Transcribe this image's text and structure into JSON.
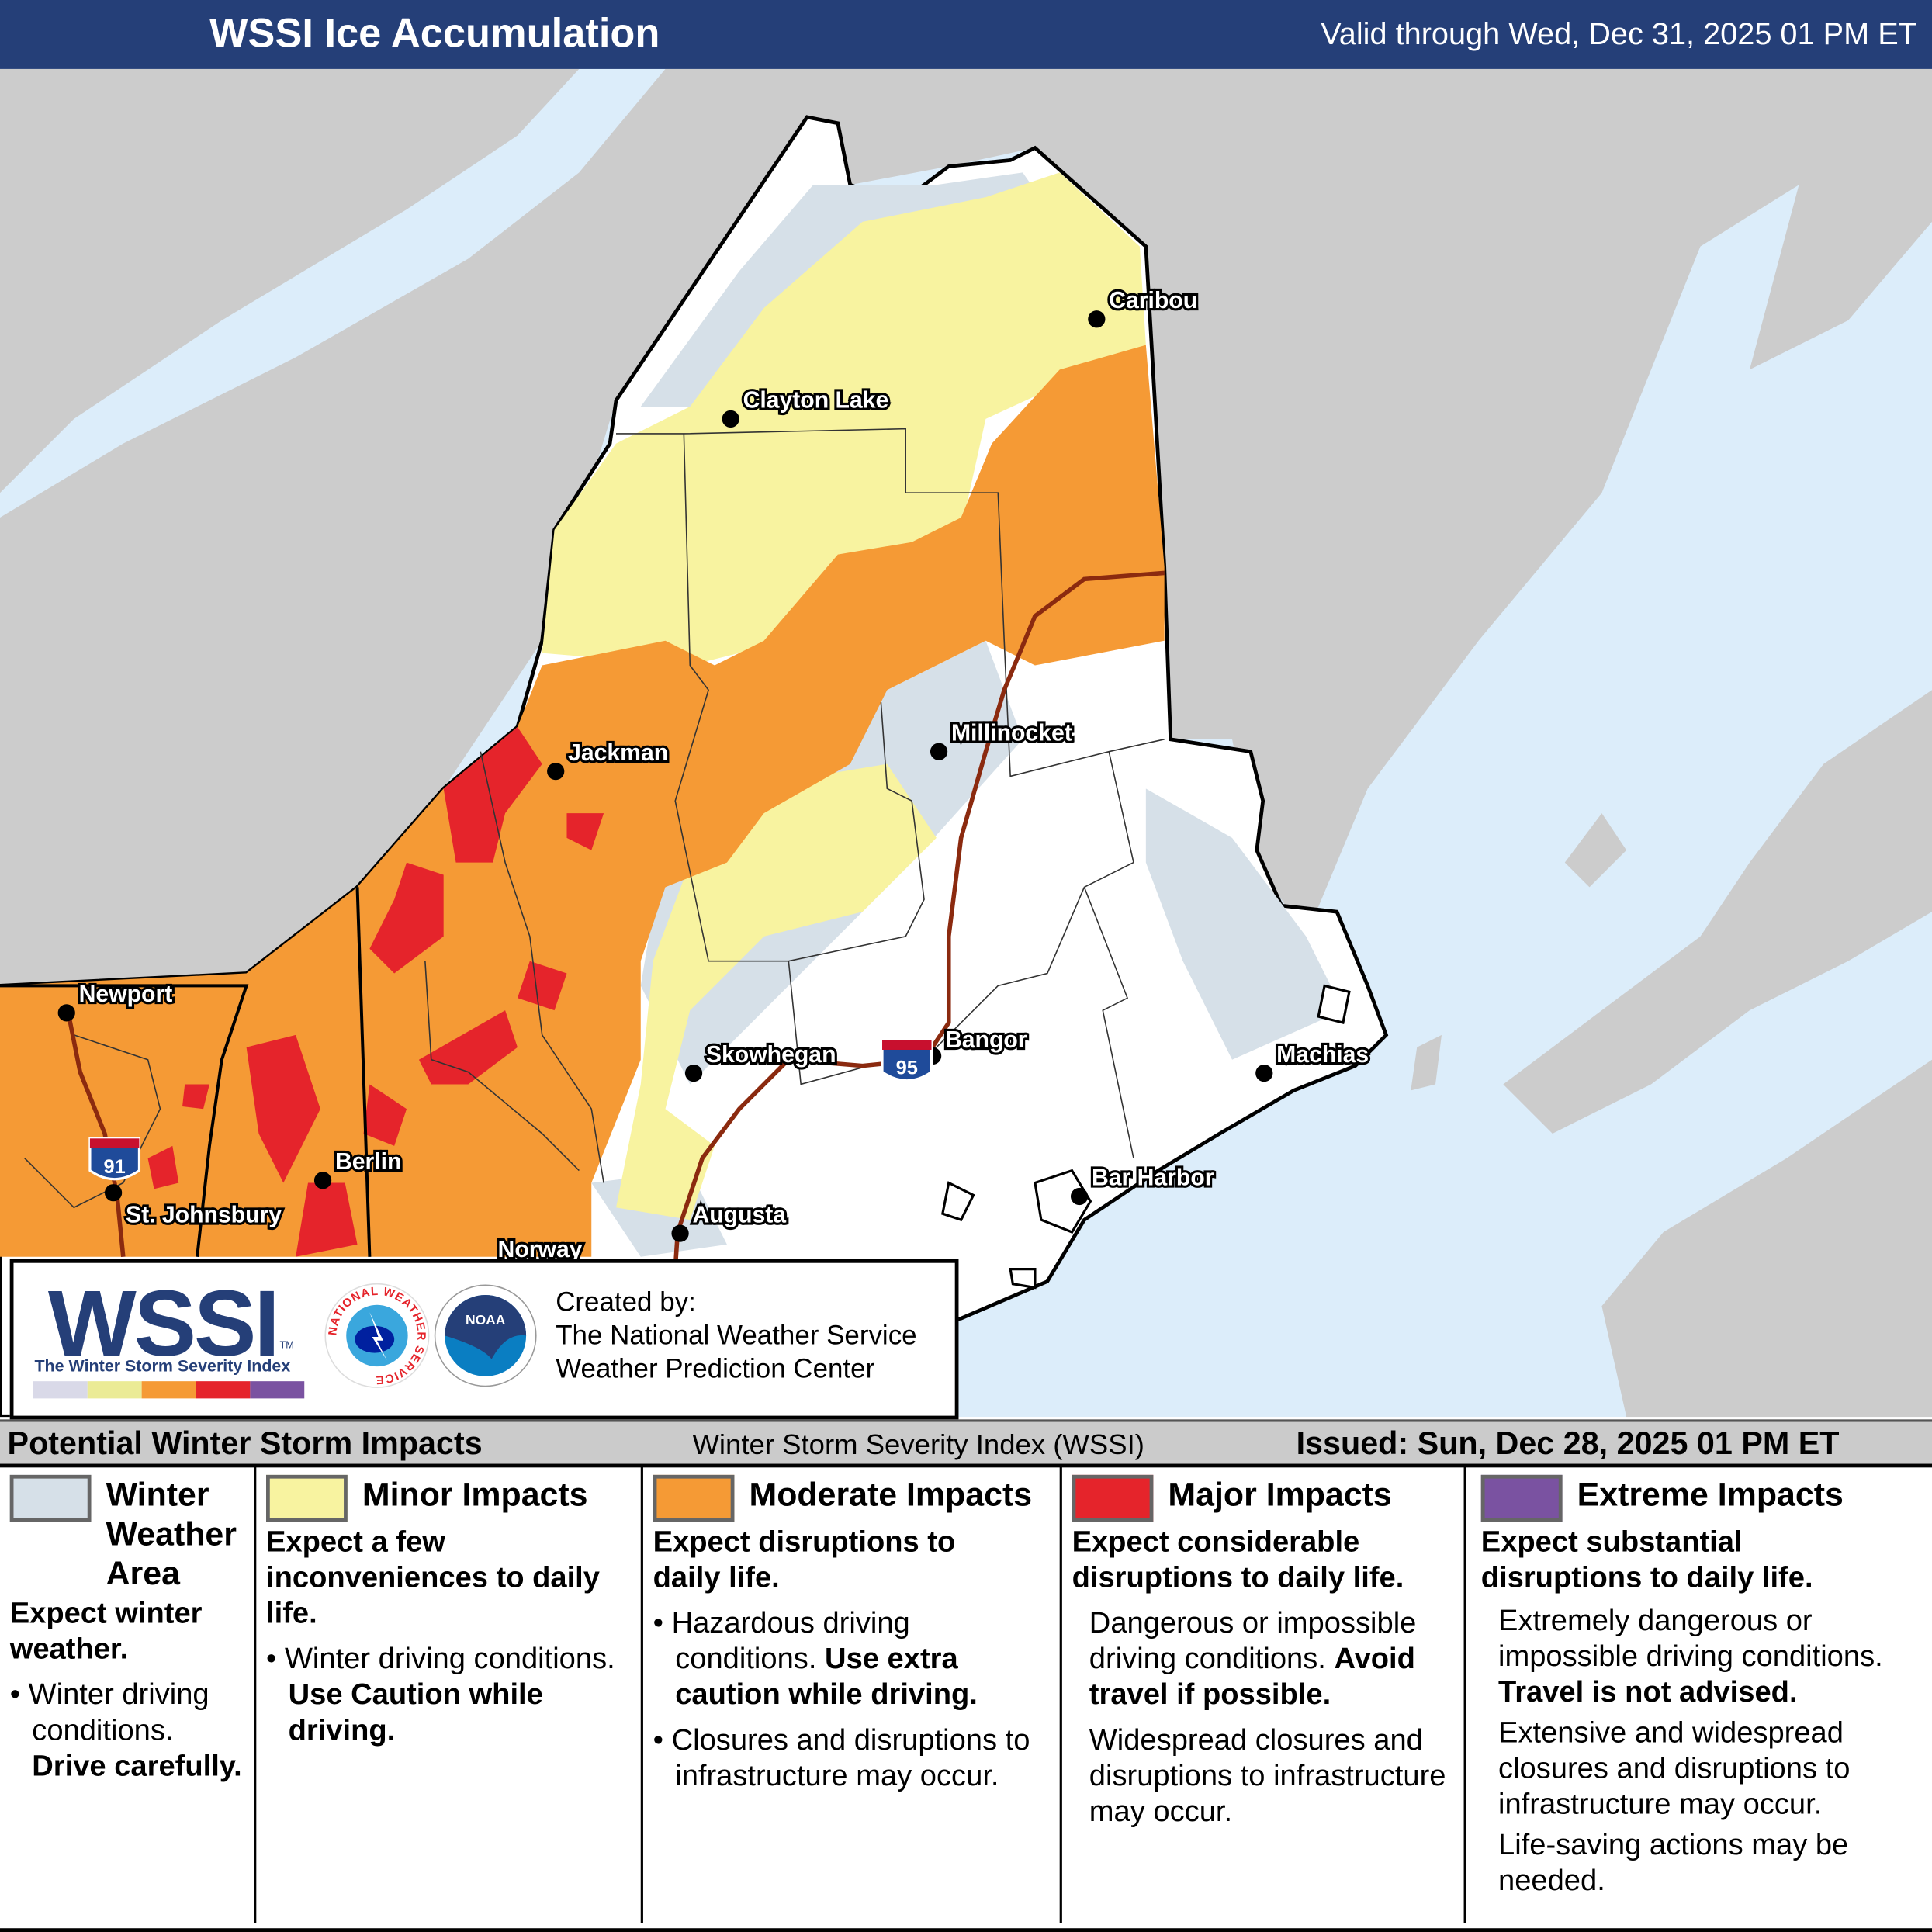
{
  "header": {
    "title": "WSSI Ice Accumulation",
    "valid": "Valid through Wed, Dec 31, 2025 01 PM ET"
  },
  "colors": {
    "header": "#253f78",
    "water": "#dcedfa",
    "land": "#cccccc",
    "none": "#ffffff",
    "winter_weather": "#d6e0e8",
    "minor": "#f8f3a0",
    "moderate": "#f59a35",
    "major": "#e5242b",
    "extreme": "#7a52a1",
    "highway": "#8b2a0f"
  },
  "map": {
    "cities": [
      "Caribou",
      "Clayton Lake",
      "Millinocket",
      "Jackman",
      "Newport",
      "Skowhegan",
      "Bangor",
      "Machias",
      "Berlin",
      "St. Johnsbury",
      "Bar Harbor",
      "Augusta",
      "Norway"
    ],
    "shields": [
      "95",
      "91"
    ]
  },
  "logo": {
    "wssi": "WSSI",
    "tm": "TM",
    "subtitle": "The Winter Storm Severity Index",
    "nws_text": "NATIONAL WEATHER SERVICE",
    "noaa_text": "NOAA",
    "created_by": "Created by:",
    "org1": "The National Weather Service",
    "org2": "Weather Prediction Center"
  },
  "strip": {
    "left": "Potential Winter Storm Impacts",
    "middle": "Winter Storm Severity Index (WSSI)",
    "issued": "Issued: Sun, Dec 28, 2025 01 PM ET"
  },
  "legend": [
    {
      "category": "Winter Weather Area",
      "headline": "Expect winter weather.",
      "bullets": [
        "Winter driving conditions."
      ],
      "bold": "Drive carefully."
    },
    {
      "category": "Minor Impacts",
      "headline": "Expect a few inconveniences to daily life.",
      "bullets": [
        "Winter driving conditions."
      ],
      "bold": "Use Caution while driving."
    },
    {
      "category": "Moderate Impacts",
      "headline": "Expect disruptions to daily life.",
      "bullets": [
        "Hazardous driving conditions.",
        "Closures and disruptions to infrastructure may occur."
      ],
      "bold": "Use extra caution while driving."
    },
    {
      "category": "Major Impacts",
      "headline": "Expect considerable disruptions to daily life.",
      "lines": [
        "Dangerous or impossible driving conditions.",
        "Widespread closures and disruptions to infrastructure may occur."
      ],
      "bold": "Avoid travel if possible."
    },
    {
      "category": "Extreme Impacts",
      "headline": "Expect substantial disruptions to daily life.",
      "lines": [
        "Extremely dangerous or impossible driving conditions.",
        "Extensive and widespread closures and disruptions to infrastructure may occur.",
        "Life-saving actions may be needed."
      ],
      "bold": "Travel is not advised."
    }
  ]
}
